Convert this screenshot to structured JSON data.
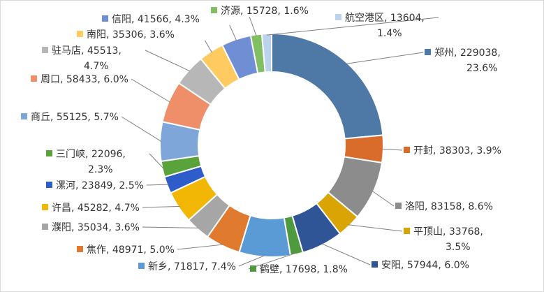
{
  "chart_data": {
    "type": "pie",
    "variant": "donut",
    "title": "",
    "legend": "none",
    "slices": [
      {
        "name": "郑州",
        "value": 229038,
        "percent": "23.6%",
        "color": "#4e79a7",
        "label": [
          "郑州, 229038,",
          "23.6%"
        ]
      },
      {
        "name": "开封",
        "value": 38303,
        "percent": "3.9%",
        "color": "#d96b2b",
        "label": [
          "开封, 38303, 3.9%"
        ]
      },
      {
        "name": "洛阳",
        "value": 83158,
        "percent": "8.6%",
        "color": "#8c8c8c",
        "label": [
          "洛阳, 83158, 8.6%"
        ]
      },
      {
        "name": "平顶山",
        "value": 33768,
        "percent": "3.5%",
        "color": "#d9a404",
        "label": [
          "平顶山, 33768,",
          "3.5%"
        ]
      },
      {
        "name": "安阳",
        "value": 57944,
        "percent": "6.0%",
        "color": "#2f5597",
        "label": [
          "安阳, 57944, 6.0%"
        ]
      },
      {
        "name": "鹤壁",
        "value": 17698,
        "percent": "1.8%",
        "color": "#4f9a3e",
        "label": [
          "鹤壁, 17698, 1.8%"
        ]
      },
      {
        "name": "新乡",
        "value": 71817,
        "percent": "7.4%",
        "color": "#5b9bd5",
        "label": [
          "新乡, 71817, 7.4%"
        ]
      },
      {
        "name": "焦作",
        "value": 48971,
        "percent": "5.0%",
        "color": "#e07a2e",
        "label": [
          "焦作, 48971, 5.0%"
        ]
      },
      {
        "name": "濮阳",
        "value": 35034,
        "percent": "3.6%",
        "color": "#a6a6a6",
        "label": [
          "濮阳, 35034, 3.6%"
        ]
      },
      {
        "name": "许昌",
        "value": 45282,
        "percent": "4.7%",
        "color": "#f2b705",
        "label": [
          "许昌, 45282, 4.7%"
        ]
      },
      {
        "name": "漯河",
        "value": 23849,
        "percent": "2.5%",
        "color": "#2e5cc8",
        "label": [
          "漯河, 23849, 2.5%"
        ]
      },
      {
        "name": "三门峡",
        "value": 22096,
        "percent": "2.3%",
        "color": "#5aa33a",
        "label": [
          "三门峡, 22096,",
          "2.3%"
        ]
      },
      {
        "name": "商丘",
        "value": 55125,
        "percent": "5.7%",
        "color": "#7ea6d8",
        "label": [
          "商丘, 55125, 5.7%"
        ]
      },
      {
        "name": "周口",
        "value": 58433,
        "percent": "6.0%",
        "color": "#ee8f6a",
        "label": [
          "周口, 58433, 6.0%"
        ]
      },
      {
        "name": "驻马店",
        "value": 45513,
        "percent": "4.7%",
        "color": "#b7b7b7",
        "label": [
          "驻马店, 45513,",
          "4.7%"
        ]
      },
      {
        "name": "南阳",
        "value": 35306,
        "percent": "3.6%",
        "color": "#ffca60",
        "label": [
          "南阳, 35306, 3.6%"
        ]
      },
      {
        "name": "信阳",
        "value": 41566,
        "percent": "4.3%",
        "color": "#6f8ed4",
        "label": [
          "信阳, 41566, 4.3%"
        ]
      },
      {
        "name": "济源",
        "value": 15728,
        "percent": "1.6%",
        "color": "#82bf62",
        "label": [
          "济源, 15728, 1.6%"
        ]
      },
      {
        "name": "航空港区",
        "value": 13604,
        "percent": "1.4%",
        "color": "#bcd3ee",
        "label": [
          "航空港区, 13604,",
          "1.4%"
        ]
      }
    ]
  }
}
